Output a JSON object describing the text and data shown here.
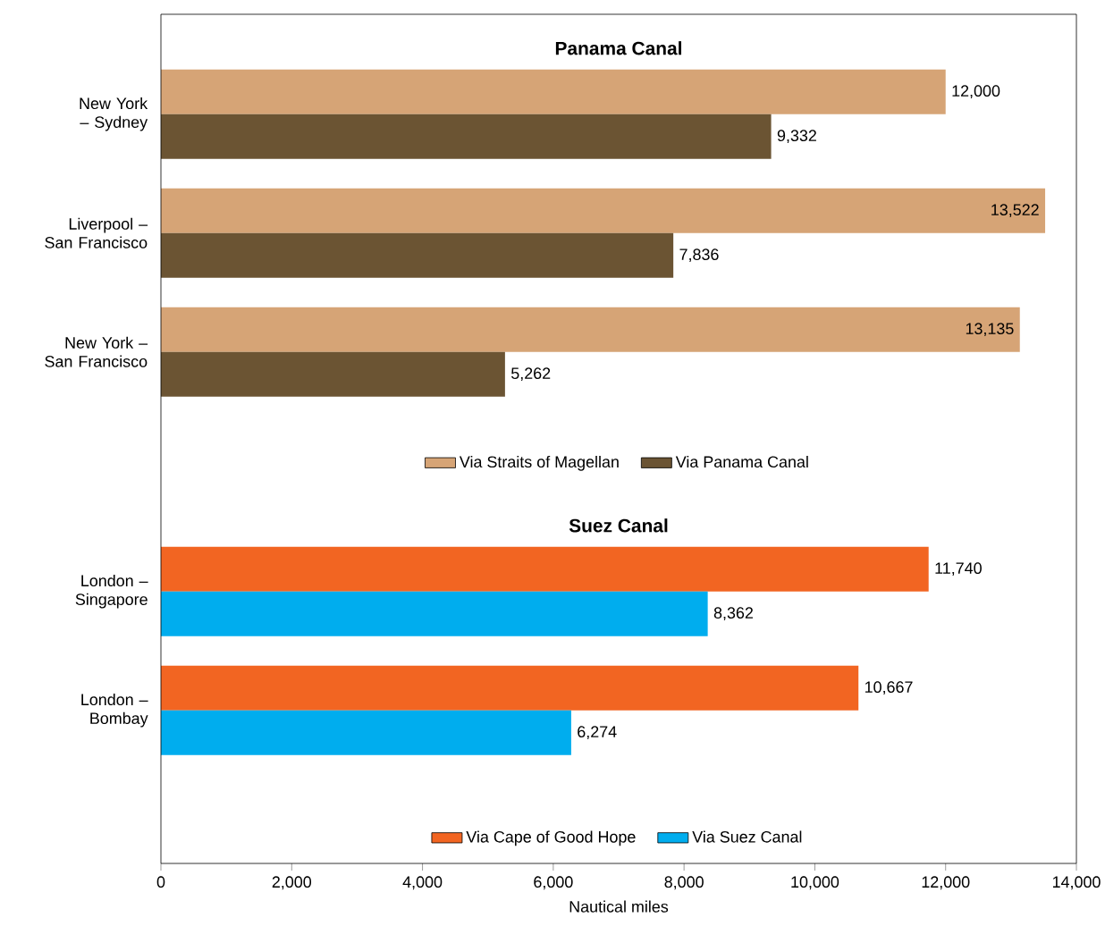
{
  "chart_data": [
    {
      "type": "bar",
      "orientation": "horizontal",
      "title": "Panama Canal",
      "categories": [
        "New York – Sydney",
        "Liverpool – San Francisco",
        "New York – San Francisco"
      ],
      "series": [
        {
          "name": "Via Straits of Magellan",
          "color": "#d6a476",
          "values": [
            12000,
            13522,
            13135
          ],
          "value_labels": [
            "12,000",
            "13,522",
            "13,135"
          ]
        },
        {
          "name": "Via Panama Canal",
          "color": "#6b5433",
          "values": [
            9332,
            7836,
            5262
          ],
          "value_labels": [
            "9,332",
            "7,836",
            "5,262"
          ]
        }
      ],
      "xlim": [
        0,
        14000
      ],
      "tick_labels": "y",
      "legend": "bottom"
    },
    {
      "type": "bar",
      "orientation": "horizontal",
      "title": "Suez Canal",
      "categories": [
        "London – Singapore",
        "London – Bombay"
      ],
      "series": [
        {
          "name": "Via Cape of Good Hope",
          "color": "#f26522",
          "values": [
            11740,
            10667
          ],
          "value_labels": [
            "11,740",
            "10,667"
          ]
        },
        {
          "name": "Via Suez Canal",
          "color": "#00adee",
          "values": [
            8362,
            6274
          ],
          "value_labels": [
            "8,362",
            "6,274"
          ]
        }
      ],
      "xlim": [
        0,
        14000
      ],
      "xticks": [
        0,
        {
          "value": 2000,
          "label": "2,000"
        },
        {
          "value": 4000,
          "label": "4,000"
        },
        {
          "value": 6000,
          "label": "6,000"
        },
        {
          "value": 8000,
          "label": "8,000"
        },
        {
          "value": 10000,
          "label": "10,000"
        },
        {
          "value": 12000,
          "label": "12,000"
        },
        {
          "value": 14000,
          "label": "14,000"
        }
      ],
      "xlabel": "Nautical miles",
      "legend": "bottom"
    }
  ]
}
